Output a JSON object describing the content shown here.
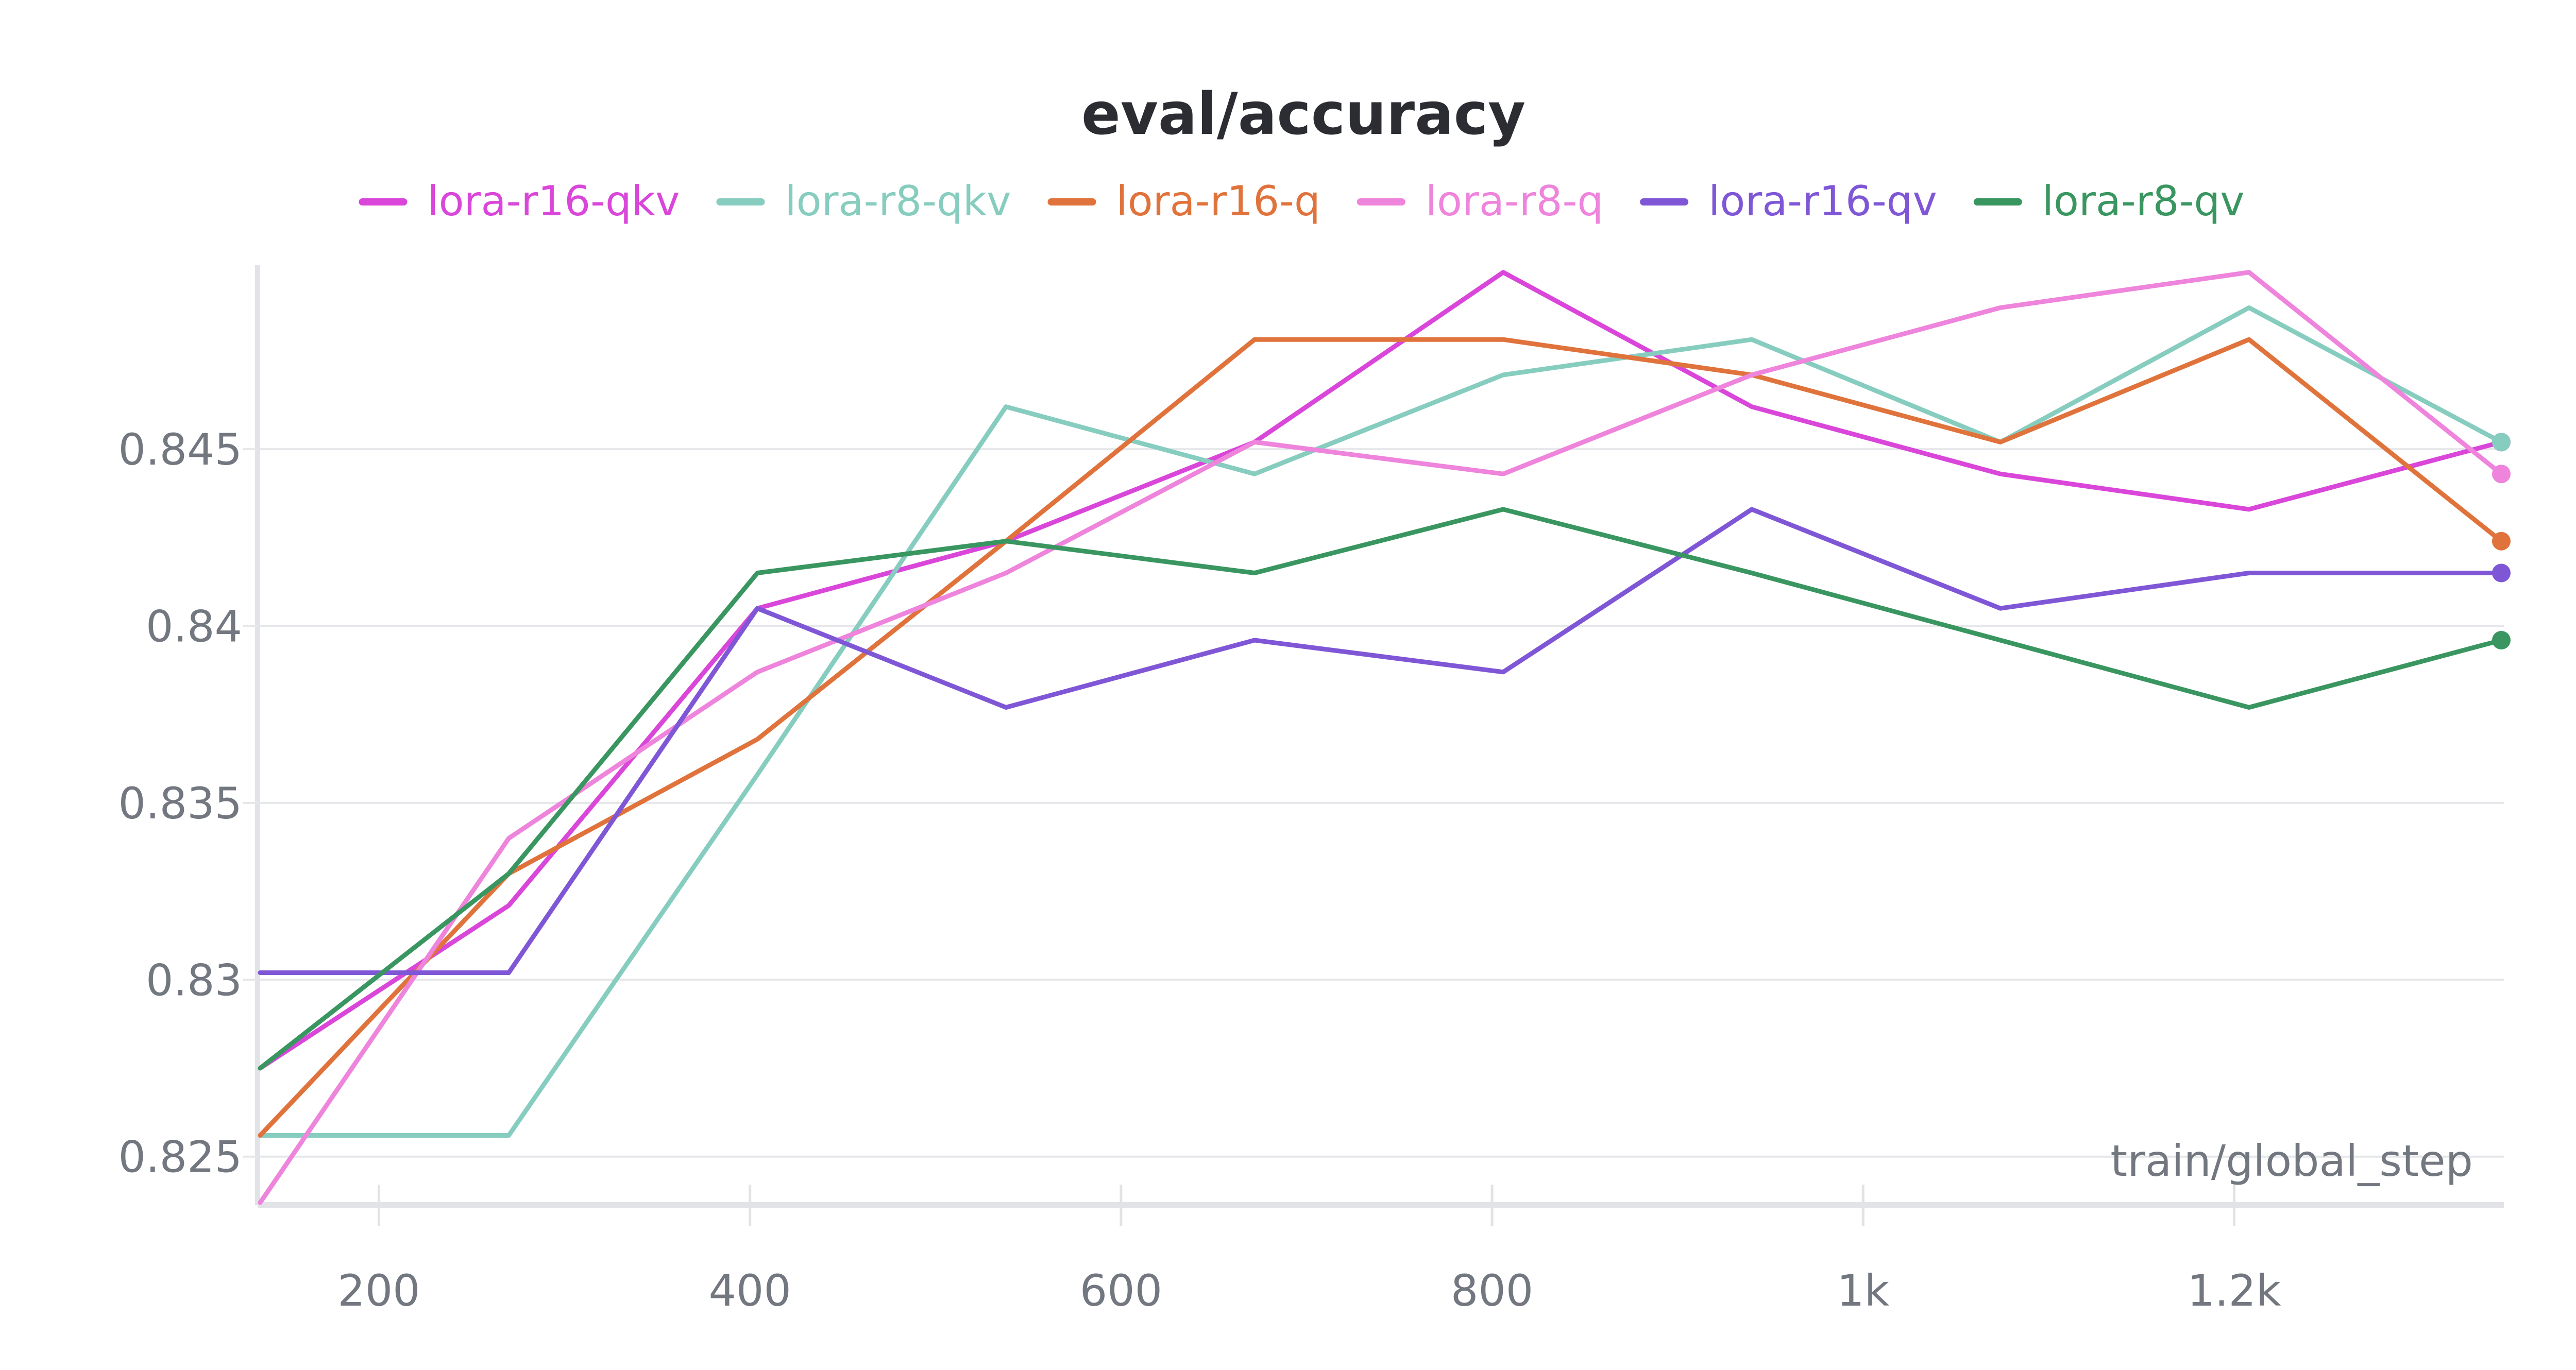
{
  "chart_data": {
    "type": "line",
    "title": "eval/accuracy",
    "xlabel": "train/global_step",
    "ylabel": "",
    "xlim": [
      136,
      1344
    ],
    "ylim": [
      0.8237,
      0.8502
    ],
    "x_ticks": [
      {
        "value": 200,
        "label": "200"
      },
      {
        "value": 400,
        "label": "400"
      },
      {
        "value": 600,
        "label": "600"
      },
      {
        "value": 800,
        "label": "800"
      },
      {
        "value": 1000,
        "label": "1k"
      },
      {
        "value": 1200,
        "label": "1.2k"
      }
    ],
    "y_ticks": [
      {
        "value": 0.825,
        "label": "0.825"
      },
      {
        "value": 0.83,
        "label": "0.83"
      },
      {
        "value": 0.835,
        "label": "0.835"
      },
      {
        "value": 0.84,
        "label": "0.84"
      },
      {
        "value": 0.845,
        "label": "0.845"
      }
    ],
    "grid": true,
    "legend_position": "top",
    "x": [
      136,
      270,
      404,
      538,
      672,
      806,
      940,
      1074,
      1208,
      1344
    ],
    "series": [
      {
        "name": "lora-r16-qkv",
        "color": "#d946d9",
        "values": [
          0.8275,
          0.8321,
          0.8405,
          0.8424,
          0.8452,
          0.85,
          0.8462,
          0.8443,
          0.8433,
          0.8452
        ]
      },
      {
        "name": "lora-r8-qkv",
        "color": "#87cdbf",
        "values": [
          0.8256,
          0.8256,
          0.8358,
          0.8462,
          0.8443,
          0.8471,
          0.8481,
          0.8452,
          0.849,
          0.8452
        ]
      },
      {
        "name": "lora-r16-q",
        "color": "#e0733c",
        "values": [
          0.8256,
          0.833,
          0.8368,
          0.8424,
          0.8481,
          0.8481,
          0.8471,
          0.8452,
          0.8481,
          0.8424
        ]
      },
      {
        "name": "lora-r8-q",
        "color": "#ee84dc",
        "values": [
          0.8237,
          0.834,
          0.8387,
          0.8415,
          0.8452,
          0.8443,
          0.8471,
          0.849,
          0.85,
          0.8443
        ]
      },
      {
        "name": "lora-r16-qv",
        "color": "#7f57d6",
        "values": [
          0.8302,
          0.8302,
          0.8405,
          0.8377,
          0.8396,
          0.8387,
          0.8433,
          0.8405,
          0.8415,
          0.8415
        ]
      },
      {
        "name": "lora-r8-qv",
        "color": "#3a9660",
        "values": [
          0.8275,
          0.833,
          0.8415,
          0.8424,
          0.8415,
          0.8433,
          0.8415,
          0.8396,
          0.8377,
          0.8396
        ]
      }
    ]
  }
}
